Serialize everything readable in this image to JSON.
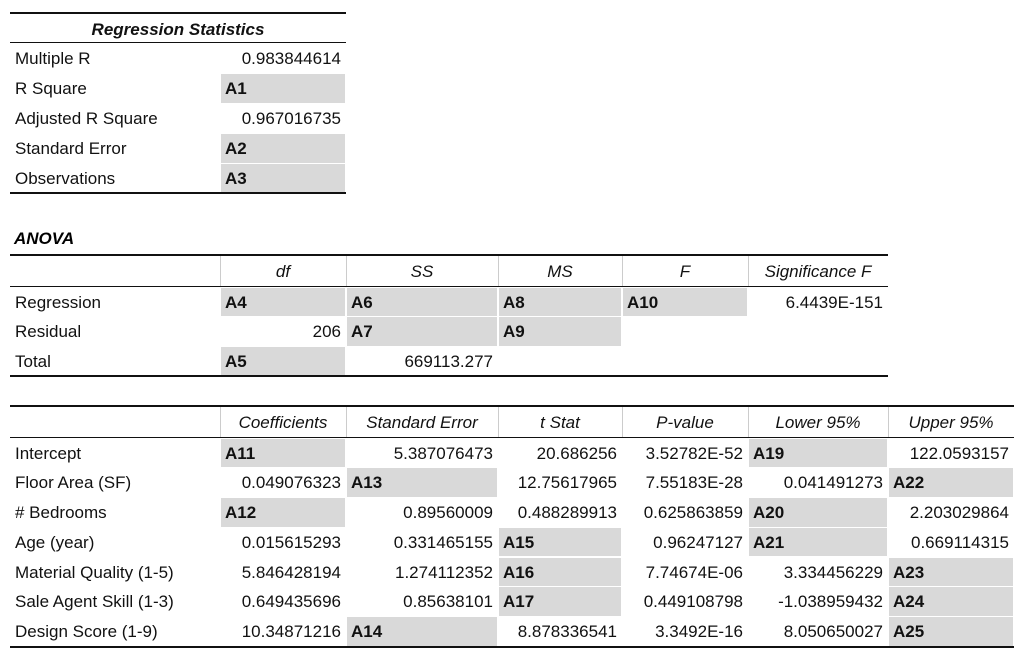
{
  "regression_statistics": {
    "title": "Regression Statistics",
    "rows": [
      [
        "Multiple R",
        "0.983844614"
      ],
      [
        "R Square",
        "A1"
      ],
      [
        "Adjusted R Square",
        "0.967016735"
      ],
      [
        "Standard Error",
        "A2"
      ],
      [
        "Observations",
        "A3"
      ]
    ]
  },
  "anova": {
    "title": "ANOVA",
    "header": [
      null,
      "df",
      "SS",
      "MS",
      "F",
      "Significance F"
    ],
    "rows": [
      [
        "Regression",
        "A4",
        "A6",
        "A8",
        "A10",
        "6.4439E-151"
      ],
      [
        "Residual",
        "206",
        "A7",
        "A9",
        null,
        null
      ],
      [
        "Total",
        "A5",
        "669113.277",
        null,
        null,
        null
      ]
    ]
  },
  "coefficients": {
    "header": [
      null,
      "Coefficients",
      "Standard Error",
      "t Stat",
      "P-value",
      "Lower 95%",
      "Upper 95%"
    ],
    "rows": [
      [
        "Intercept",
        "A11",
        "5.387076473",
        "20.686256",
        "3.52782E-52",
        "A19",
        "122.0593157"
      ],
      [
        "Floor Area (SF)",
        "0.049076323",
        "A13",
        "12.75617965",
        "7.55183E-28",
        "0.041491273",
        "A22"
      ],
      [
        "# Bedrooms",
        "A12",
        "0.89560009",
        "0.488289913",
        "0.625863859",
        "A20",
        "2.203029864"
      ],
      [
        "Age (year)",
        "0.015615293",
        "0.331465155",
        "A15",
        "0.96247127",
        "A21",
        "0.669114315"
      ],
      [
        "Material Quality (1-5)",
        "5.846428194",
        "1.274112352",
        "A16",
        "7.74674E-06",
        "3.334456229",
        "A23"
      ],
      [
        "Sale Agent Skill (1-3)",
        "0.649435696",
        "0.85638101",
        "A17",
        "0.449108798",
        "-1.038959432",
        "A24"
      ],
      [
        "Design Score (1-9)",
        "10.34871216",
        "A14",
        "8.878336541",
        "3.3492E-16",
        "8.050650027",
        "A25"
      ]
    ]
  }
}
